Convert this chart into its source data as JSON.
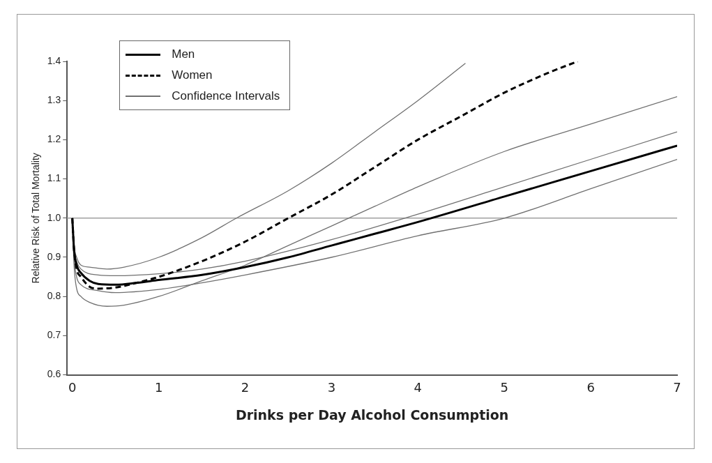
{
  "chart_data": {
    "type": "line",
    "xlabel": "Drinks per Day Alcohol Consumption",
    "ylabel": "Relative Risk of Total Mortality",
    "xlim": [
      -0.06,
      7
    ],
    "xticks": [
      0,
      1,
      2,
      3,
      4,
      5,
      6,
      7
    ],
    "ylim": [
      0.6,
      1.4
    ],
    "yticks": [
      0.6,
      0.7,
      0.8,
      0.9,
      {
        "value": 1,
        "label": "1.0"
      },
      1.1,
      1.2,
      1.3,
      1.4
    ],
    "grid": false,
    "legend": "top left",
    "marker": "none",
    "ref_lines": [
      {
        "axis": "y",
        "value": 1,
        "label": null,
        "color": "#a0a0a0"
      }
    ],
    "series": [
      {
        "name": "Men",
        "color": "#000000",
        "line_style": "solid",
        "x": [
          0,
          0.02,
          0.05,
          0.1,
          0.2,
          0.3,
          0.5,
          0.75,
          1,
          1.5,
          2,
          2.5,
          3,
          3.5,
          4,
          5,
          6,
          7
        ],
        "values": [
          1.0,
          0.92,
          0.88,
          0.86,
          0.84,
          0.832,
          0.83,
          0.835,
          0.842,
          0.855,
          0.875,
          0.9,
          0.93,
          0.96,
          0.99,
          1.055,
          1.12,
          1.185
        ]
      },
      {
        "name": "Women",
        "color": "#000000",
        "line_style": "dashed",
        "x": [
          0,
          0.02,
          0.05,
          0.1,
          0.2,
          0.3,
          0.5,
          0.75,
          1,
          1.5,
          2,
          2.5,
          3,
          3.5,
          4,
          4.5,
          5,
          5.5,
          5.85
        ],
        "values": [
          1.0,
          0.92,
          0.87,
          0.85,
          0.825,
          0.82,
          0.823,
          0.835,
          0.85,
          0.89,
          0.94,
          1.0,
          1.06,
          1.13,
          1.2,
          1.26,
          1.32,
          1.37,
          1.4
        ]
      },
      {
        "name": "Confidence Intervals",
        "color": "#707070",
        "line_style": "solid",
        "x": [
          0,
          0.02,
          0.05,
          0.1,
          0.2,
          0.4,
          0.6,
          1,
          1.5,
          1.9,
          2.5,
          3,
          3.5,
          4,
          4.55
        ],
        "values": [
          1.0,
          0.93,
          0.9,
          0.88,
          0.875,
          0.87,
          0.875,
          0.9,
          0.95,
          1.0,
          1.07,
          1.14,
          1.22,
          1.3,
          1.395
        ]
      },
      {
        "color": "#707070",
        "line_style": "solid",
        "x": [
          0,
          0.02,
          0.05,
          0.1,
          0.2,
          0.4,
          0.6,
          1,
          1.5,
          2,
          2.5,
          3,
          3.5,
          4,
          5,
          6,
          7
        ],
        "values": [
          1.0,
          0.88,
          0.82,
          0.8,
          0.785,
          0.775,
          0.778,
          0.8,
          0.84,
          0.88,
          0.93,
          0.98,
          1.03,
          1.08,
          1.17,
          1.24,
          1.31
        ]
      },
      {
        "color": "#707070",
        "line_style": "solid",
        "x": [
          0,
          0.02,
          0.05,
          0.1,
          0.3,
          0.5,
          1,
          1.5,
          2,
          3,
          4,
          5,
          6,
          7
        ],
        "values": [
          1.0,
          0.92,
          0.89,
          0.87,
          0.855,
          0.853,
          0.858,
          0.87,
          0.89,
          0.945,
          1.01,
          1.08,
          1.15,
          1.22
        ]
      },
      {
        "color": "#707070",
        "line_style": "solid",
        "x": [
          0,
          0.02,
          0.05,
          0.1,
          0.3,
          0.5,
          1,
          1.5,
          2,
          3,
          4,
          5,
          6,
          7
        ],
        "values": [
          1.0,
          0.9,
          0.85,
          0.83,
          0.815,
          0.81,
          0.818,
          0.835,
          0.855,
          0.9,
          0.955,
          1.0,
          1.075,
          1.15
        ]
      }
    ]
  }
}
